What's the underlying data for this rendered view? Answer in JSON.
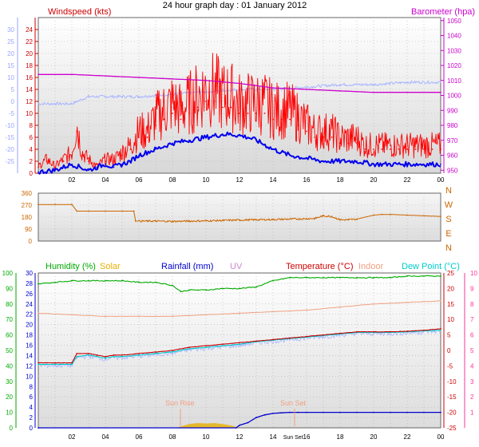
{
  "colors": {
    "windspeed": "#ff0000",
    "gust_avg": "#0000ee",
    "barometer": "#cc00cc",
    "outdoor_temp_bg": "#a8b4ff",
    "wind_dir": "#cc6600",
    "humidity": "#00aa00",
    "solar": "#e8b000",
    "rainfall": "#0000cc",
    "uv": "#cc88cc",
    "temperature": "#cc0000",
    "indoor": "#f0a080",
    "dew_point": "#00cccc",
    "axis_left_blue": "#9aa4ff",
    "axis_red": "#cc0000",
    "axis_magenta": "#cc00cc",
    "axis_green": "#00aa00",
    "axis_pink": "#ff3399"
  },
  "chart_data": [
    {
      "type": "line",
      "id": "top",
      "title": "24 hour graph day : 01 January 2012",
      "left_title": "Windspeed (kts)",
      "right_title": "Barometer (hpa)",
      "x_ticks": [
        "02",
        "04",
        "06",
        "08",
        "10",
        "12",
        "14",
        "16",
        "18",
        "20",
        "22",
        "00"
      ],
      "ylim_wind": [
        0,
        26
      ],
      "ylim_baro": [
        948,
        1052
      ],
      "ylim_temp_outer": [
        -30,
        35
      ],
      "y_ticks_wind": [
        0,
        2,
        4,
        6,
        8,
        10,
        12,
        14,
        16,
        18,
        20,
        22,
        24
      ],
      "y_ticks_baro": [
        950,
        960,
        970,
        980,
        990,
        1000,
        1010,
        1020,
        1030,
        1040,
        1050
      ],
      "y_ticks_temp_outer": [
        -25,
        -20,
        -15,
        -10,
        -5,
        0,
        5,
        10,
        15,
        20,
        25,
        30
      ],
      "grid": true,
      "series": [
        {
          "name": "Windspeed (kts)",
          "key": "wind",
          "x": [
            0,
            0.5,
            1,
            1.5,
            2,
            2.3,
            2.6,
            3,
            3.5,
            4,
            4.5,
            5,
            5.5,
            6,
            6.5,
            7,
            7.5,
            8,
            8.5,
            9,
            9.5,
            10,
            10.5,
            11,
            11.5,
            12,
            12.5,
            13,
            13.5,
            14,
            14.5,
            15,
            15.5,
            16,
            16.5,
            17,
            17.5,
            18,
            18.5,
            19,
            19.5,
            20,
            20.5,
            21,
            21.5,
            22,
            22.5,
            23,
            23.5,
            24
          ],
          "values": [
            1,
            2,
            1,
            2,
            3,
            7,
            3,
            2,
            1,
            2,
            2,
            3,
            4,
            6,
            6,
            8,
            9,
            10,
            9,
            10,
            11,
            12,
            12,
            11,
            11,
            10,
            10,
            10,
            10,
            9,
            9,
            9,
            8,
            7,
            6,
            6,
            6,
            5,
            5,
            5,
            4,
            4,
            4,
            4,
            4,
            4,
            4,
            4,
            4,
            4
          ]
        },
        {
          "name": "Gust avg",
          "key": "gust",
          "x": [
            0,
            1,
            2,
            2.5,
            3,
            3.5,
            4,
            4.5,
            5,
            5.5,
            6,
            7,
            8,
            9,
            10,
            11,
            11.5,
            12,
            12.5,
            13,
            14,
            15,
            16,
            17,
            18,
            19,
            20,
            21,
            22,
            23,
            24
          ],
          "values": [
            0.2,
            0.5,
            1.5,
            1,
            0.5,
            1,
            1.5,
            1,
            1.5,
            2,
            3,
            4,
            5,
            5.5,
            6,
            6.5,
            6.5,
            6.3,
            6,
            5.5,
            4,
            3,
            2.5,
            2,
            2,
            2,
            1.5,
            1.5,
            1.5,
            1.5,
            1.5
          ]
        },
        {
          "name": "Barometer (hpa)",
          "key": "baro",
          "x": [
            0,
            2,
            4,
            6,
            8,
            10,
            12,
            14,
            16,
            18,
            20,
            22,
            24
          ],
          "values": [
            1014,
            1014,
            1013,
            1012,
            1011,
            1010,
            1008,
            1005,
            1004,
            1003,
            1002,
            1002,
            1002
          ]
        },
        {
          "name": "Outdoor temp",
          "key": "temp_bg",
          "x": [
            0,
            1,
            2,
            3,
            4,
            5,
            6,
            8,
            10,
            12,
            14,
            16,
            18,
            20,
            22,
            24
          ],
          "values": [
            -1,
            -1,
            -1,
            2,
            2,
            2,
            2,
            3,
            4,
            5,
            5,
            6,
            7,
            7,
            8,
            8
          ]
        }
      ]
    },
    {
      "type": "line",
      "id": "middle",
      "y_ticks": [
        0,
        90,
        180,
        270,
        360
      ],
      "y_labels_right": [
        "N",
        "W",
        "S",
        "E",
        "N"
      ],
      "ylim": [
        0,
        360
      ],
      "grid": true,
      "series": [
        {
          "name": "Wind direction",
          "key": "wdir",
          "x": [
            0,
            1,
            2,
            2.3,
            3,
            4,
            5,
            5.7,
            5.8,
            6.5,
            7,
            8,
            9,
            10,
            11,
            12,
            13,
            14,
            15,
            16,
            16.5,
            17,
            17.5,
            18,
            18.5,
            19,
            20,
            20.5,
            21,
            22,
            23,
            24
          ],
          "values": [
            275,
            275,
            275,
            225,
            225,
            225,
            225,
            225,
            150,
            150,
            150,
            148,
            150,
            152,
            155,
            158,
            160,
            162,
            165,
            168,
            170,
            190,
            185,
            160,
            160,
            165,
            195,
            200,
            200,
            195,
            190,
            185
          ]
        }
      ]
    },
    {
      "type": "line",
      "id": "bottom",
      "legend": [
        "Humidity (%)",
        "Solar",
        "Rainfall (mm)",
        "UV",
        "Temperature (°C)",
        "Indoor",
        "Dew Point (°C)"
      ],
      "annotations": [
        "Sun Rise",
        "Sun Set"
      ],
      "x_ticks": [
        "02",
        "04",
        "06",
        "08",
        "10",
        "12",
        "14",
        "Sun Set",
        "16",
        "18",
        "20",
        "22",
        "00"
      ],
      "y_ticks_left_outer": [
        0,
        10,
        20,
        30,
        40,
        50,
        60,
        70,
        80,
        90,
        100
      ],
      "y_ticks_left_inner": [
        0,
        2,
        4,
        6,
        8,
        10,
        12,
        14,
        16,
        18,
        20,
        22,
        24,
        26,
        28,
        30
      ],
      "y_ticks_right_inner": [
        -25,
        -20,
        -15,
        -10,
        -5,
        0,
        5,
        10,
        15,
        20,
        25
      ],
      "y_ticks_right_outer": [
        1,
        2,
        3,
        4,
        5,
        6,
        7,
        8,
        9,
        10
      ],
      "ylim_hum": [
        0,
        100
      ],
      "ylim_temp": [
        -25,
        25
      ],
      "ylim_rain": [
        0,
        30
      ],
      "grid": true,
      "series": [
        {
          "name": "Humidity (%)",
          "key": "hum",
          "x": [
            0,
            1,
            2,
            3,
            4,
            5,
            6,
            7,
            8,
            8.5,
            9,
            10,
            11,
            12,
            13,
            14,
            15,
            16,
            17,
            18,
            19,
            20,
            21,
            22,
            23,
            24
          ],
          "values": [
            93,
            94,
            95,
            95,
            95,
            95,
            94,
            94,
            92,
            88,
            89,
            89,
            90,
            90,
            91,
            95,
            97,
            97,
            97,
            97,
            97,
            97,
            97,
            98,
            98,
            98
          ]
        },
        {
          "name": "Indoor",
          "key": "indoor",
          "x": [
            0,
            2,
            4,
            6,
            8,
            10,
            12,
            14,
            16,
            18,
            20,
            22,
            24
          ],
          "values": [
            12,
            11.5,
            11,
            11,
            11,
            11.5,
            12,
            12.5,
            13,
            14,
            15,
            15.5,
            16
          ]
        },
        {
          "name": "Temperature (°C)",
          "key": "temp",
          "x": [
            0,
            1,
            2,
            2.3,
            3,
            3.5,
            4,
            4.5,
            5,
            6,
            7,
            8,
            9,
            10,
            11,
            12,
            13,
            14,
            15,
            16,
            17,
            18,
            19,
            20,
            21,
            22,
            23,
            24
          ],
          "values": [
            -4,
            -4,
            -4,
            -1,
            -1,
            -1.5,
            -2,
            -1.5,
            -1.5,
            -1,
            -0.5,
            0,
            1,
            1.5,
            2,
            2.5,
            3,
            3.5,
            4,
            4.5,
            5,
            5.5,
            6,
            6,
            6,
            6.2,
            6.5,
            7
          ]
        },
        {
          "name": "Dew Point (°C)",
          "key": "dew",
          "x": [
            0,
            1,
            2,
            2.3,
            3,
            3.5,
            4,
            4.5,
            5,
            6,
            7,
            8,
            9,
            10,
            11,
            12,
            13,
            14,
            15,
            16,
            17,
            18,
            19,
            20,
            21,
            22,
            23,
            24
          ],
          "values": [
            -4.5,
            -4.5,
            -4.5,
            -2,
            -1.5,
            -2,
            -2.5,
            -2,
            -2,
            -1.5,
            -1,
            -0.5,
            0.5,
            1,
            1.5,
            2,
            2.8,
            3.3,
            3.8,
            4.3,
            4.8,
            5.3,
            5.8,
            5.8,
            5.8,
            6,
            6.3,
            6.5
          ]
        },
        {
          "name": "Rainfall (mm)",
          "key": "rain",
          "x": [
            0,
            11.8,
            12,
            12.5,
            13,
            13.5,
            14,
            14.5,
            15,
            15.5,
            16,
            17,
            18,
            19,
            20,
            21,
            22,
            23,
            24
          ],
          "values": [
            0,
            0,
            0.5,
            1,
            2,
            2.5,
            2.8,
            2.9,
            3,
            3,
            3,
            3,
            3,
            3,
            3,
            3,
            3,
            3,
            3
          ]
        },
        {
          "name": "Solar",
          "key": "solar",
          "x": [
            8.2,
            8.6,
            9,
            9.5,
            10,
            10.5,
            11,
            11.5,
            12
          ],
          "values": [
            0,
            0.4,
            0.8,
            1,
            0.9,
            1,
            0.8,
            0.5,
            0
          ]
        }
      ]
    }
  ]
}
